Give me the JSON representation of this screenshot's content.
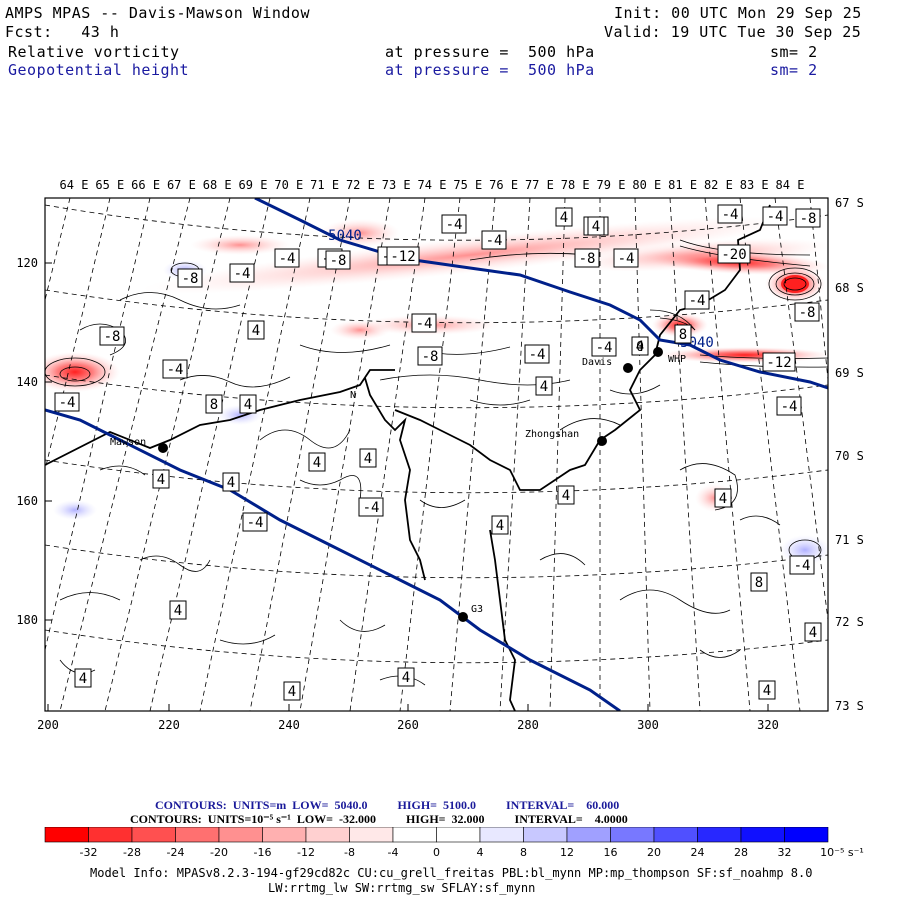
{
  "header": {
    "title": "AMPS MPAS -- Davis-Mawson Window",
    "init": "Init: 00 UTC Mon 29 Sep 25",
    "fcst": "Fcst:   43 h",
    "valid": "Valid: 19 UTC Tue 30 Sep 25",
    "field1": {
      "name": "Relative vorticity",
      "level": "at pressure =  500 hPa",
      "sm": "sm= 2"
    },
    "field2": {
      "name": "Geopotential height",
      "level": "at pressure =  500 hPa",
      "sm": "sm= 2"
    }
  },
  "map": {
    "lon_labels": [
      "64 E",
      "65 E",
      "66 E",
      "67 E",
      "68 E",
      "69 E",
      "70 E",
      "71 E",
      "72 E",
      "73 E",
      "74 E",
      "75 E",
      "76 E",
      "77 E",
      "78 E",
      "79 E",
      "80 E",
      "81 E",
      "82 E",
      "83 E",
      "84 E"
    ],
    "lat_labels": [
      "67 S",
      "68 S",
      "69 S",
      "70 S",
      "71 S",
      "72 S",
      "73 S"
    ],
    "y_ticks": [
      "120",
      "140",
      "160",
      "180"
    ],
    "x_ticks": [
      "200",
      "220",
      "240",
      "260",
      "280",
      "300",
      "320"
    ],
    "stations": [
      {
        "name": "Mawson"
      },
      {
        "name": "Zhongshan"
      },
      {
        "name": "Davis"
      },
      {
        "name": "WHP"
      },
      {
        "name": "G3"
      },
      {
        "name": "N"
      }
    ],
    "height_labels": [
      "5040",
      "5040"
    ],
    "vort_labels": [
      "-4",
      "-4",
      "-4",
      "-4",
      "-4",
      "-8",
      "-8",
      "-12",
      "-8",
      "-4",
      "-8",
      "4",
      "-20",
      "-4",
      "-8",
      "-4",
      "-4",
      "-8",
      "-4",
      "-4",
      "-4",
      "-8",
      "-4",
      "4",
      "-12",
      "-4",
      "-8",
      "-4",
      "-4",
      "4",
      "8",
      "4",
      "4",
      "-4",
      "4",
      "4",
      "4",
      "-4",
      "4",
      "4",
      "4",
      "-4",
      "8",
      "4",
      "4",
      "4",
      "4",
      "4",
      "4",
      "4",
      "0",
      "8",
      "4"
    ]
  },
  "colorbar": {
    "contours_height": "CONTOURS:  UNITS=m  LOW=  5040.0          HIGH=  5100.0          INTERVAL=    60.000",
    "contours_vort": "CONTOURS:  UNITS=10⁻⁵ s⁻¹  LOW=  -32.000          HIGH=  32.000          INTERVAL=    4.0000",
    "ticks": [
      "-32",
      "-28",
      "-24",
      "-20",
      "-16",
      "-12",
      "-8",
      "-4",
      "0",
      "4",
      "8",
      "12",
      "16",
      "20",
      "24",
      "28",
      "32"
    ],
    "unit": "10⁻⁵ s⁻¹",
    "colors": [
      "#ff0000",
      "#ff3030",
      "#ff5050",
      "#ff7070",
      "#ff9090",
      "#ffb0b0",
      "#ffd0d0",
      "#ffe8e8",
      "#ffffff",
      "#ffffff",
      "#e8e8ff",
      "#c8c8ff",
      "#a0a0ff",
      "#7878ff",
      "#5050ff",
      "#2828ff",
      "#0000ff"
    ]
  },
  "model_info": {
    "line1": "Model Info: MPASv8.2.3-194-gf29cd82c CU:cu_grell_freitas PBL:bl_mynn MP:mp_thompson SF:sf_noahmp 8.0",
    "line2": "LW:rrtmg_lw SW:rrtmg_sw SFLAY:sf_mynn"
  }
}
